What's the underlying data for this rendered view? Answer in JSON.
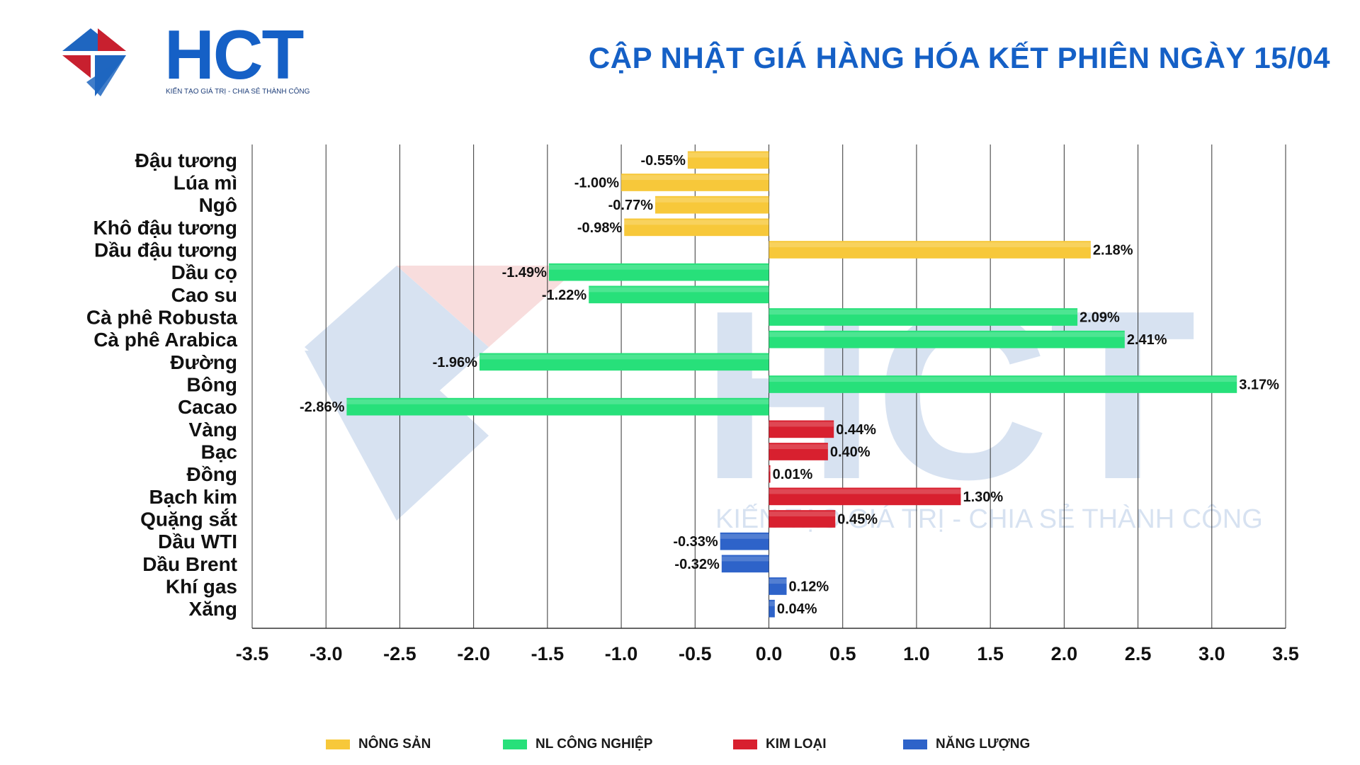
{
  "header": {
    "logo_text": "HCT",
    "slogan": "KIẾN TẠO GIÁ TRỊ - CHIA SẺ THÀNH CÔNG",
    "title": "CẬP NHẬT GIÁ HÀNG HÓA KẾT PHIÊN NGÀY 15/04"
  },
  "watermark": {
    "text": "HCT",
    "slogan": "KIẾN TẠO GIÁ TRỊ - CHIA SẺ THÀNH CÔNG"
  },
  "colors": {
    "title": "#1560c6",
    "nong_san": "#f7c83a",
    "nl_cong_nghiep": "#27e07a",
    "kim_loai": "#d8202f",
    "nang_luong": "#2e63c9",
    "logo_red": "#c8202f",
    "logo_blue": "#1f66c0"
  },
  "chart_data": {
    "type": "bar",
    "orientation": "horizontal",
    "xlim": [
      -3.5,
      3.5
    ],
    "xticks": [
      "-3.5",
      "-3.0",
      "-2.5",
      "-2.0",
      "-1.5",
      "-1.0",
      "-0.5",
      "0.0",
      "0.5",
      "1.0",
      "1.5",
      "2.0",
      "2.5",
      "3.0",
      "3.5"
    ],
    "grid": "vertical",
    "legend_position": "bottom",
    "categories": [
      "Đậu tương",
      "Lúa mì",
      "Ngô",
      "Khô đậu tương",
      "Dầu đậu tương",
      "Dầu cọ",
      "Cao su",
      "Cà phê Robusta",
      "Cà phê Arabica",
      "Đường",
      "Bông",
      "Cacao",
      "Vàng",
      "Bạc",
      "Đồng",
      "Bạch kim",
      "Quặng sắt",
      "Dầu WTI",
      "Dầu Brent",
      "Khí gas",
      "Xăng"
    ],
    "values": [
      -0.55,
      -1.0,
      -0.77,
      -0.98,
      2.18,
      -1.49,
      -1.22,
      2.09,
      2.41,
      -1.96,
      3.17,
      -2.86,
      0.44,
      0.4,
      0.01,
      1.3,
      0.45,
      -0.33,
      -0.32,
      0.12,
      0.04
    ],
    "value_labels": [
      "-0.55%",
      "-1.00%",
      "-0.77%",
      "-0.98%",
      "2.18%",
      "-1.49%",
      "-1.22%",
      "2.09%",
      "2.41%",
      "-1.96%",
      "3.17%",
      "-2.86%",
      "0.44%",
      "0.40%",
      "0.01%",
      "1.30%",
      "0.45%",
      "-0.33%",
      "-0.32%",
      "0.12%",
      "0.04%"
    ],
    "groups": [
      0,
      0,
      0,
      0,
      0,
      1,
      1,
      1,
      1,
      1,
      1,
      1,
      2,
      2,
      2,
      2,
      2,
      3,
      3,
      3,
      3
    ],
    "legend": [
      {
        "name": "NÔNG SẢN",
        "color": "#f7c83a"
      },
      {
        "name": "NL CÔNG NGHIỆP",
        "color": "#27e07a"
      },
      {
        "name": "KIM LOẠI",
        "color": "#d8202f"
      },
      {
        "name": "NĂNG LƯỢNG",
        "color": "#2e63c9"
      }
    ]
  }
}
